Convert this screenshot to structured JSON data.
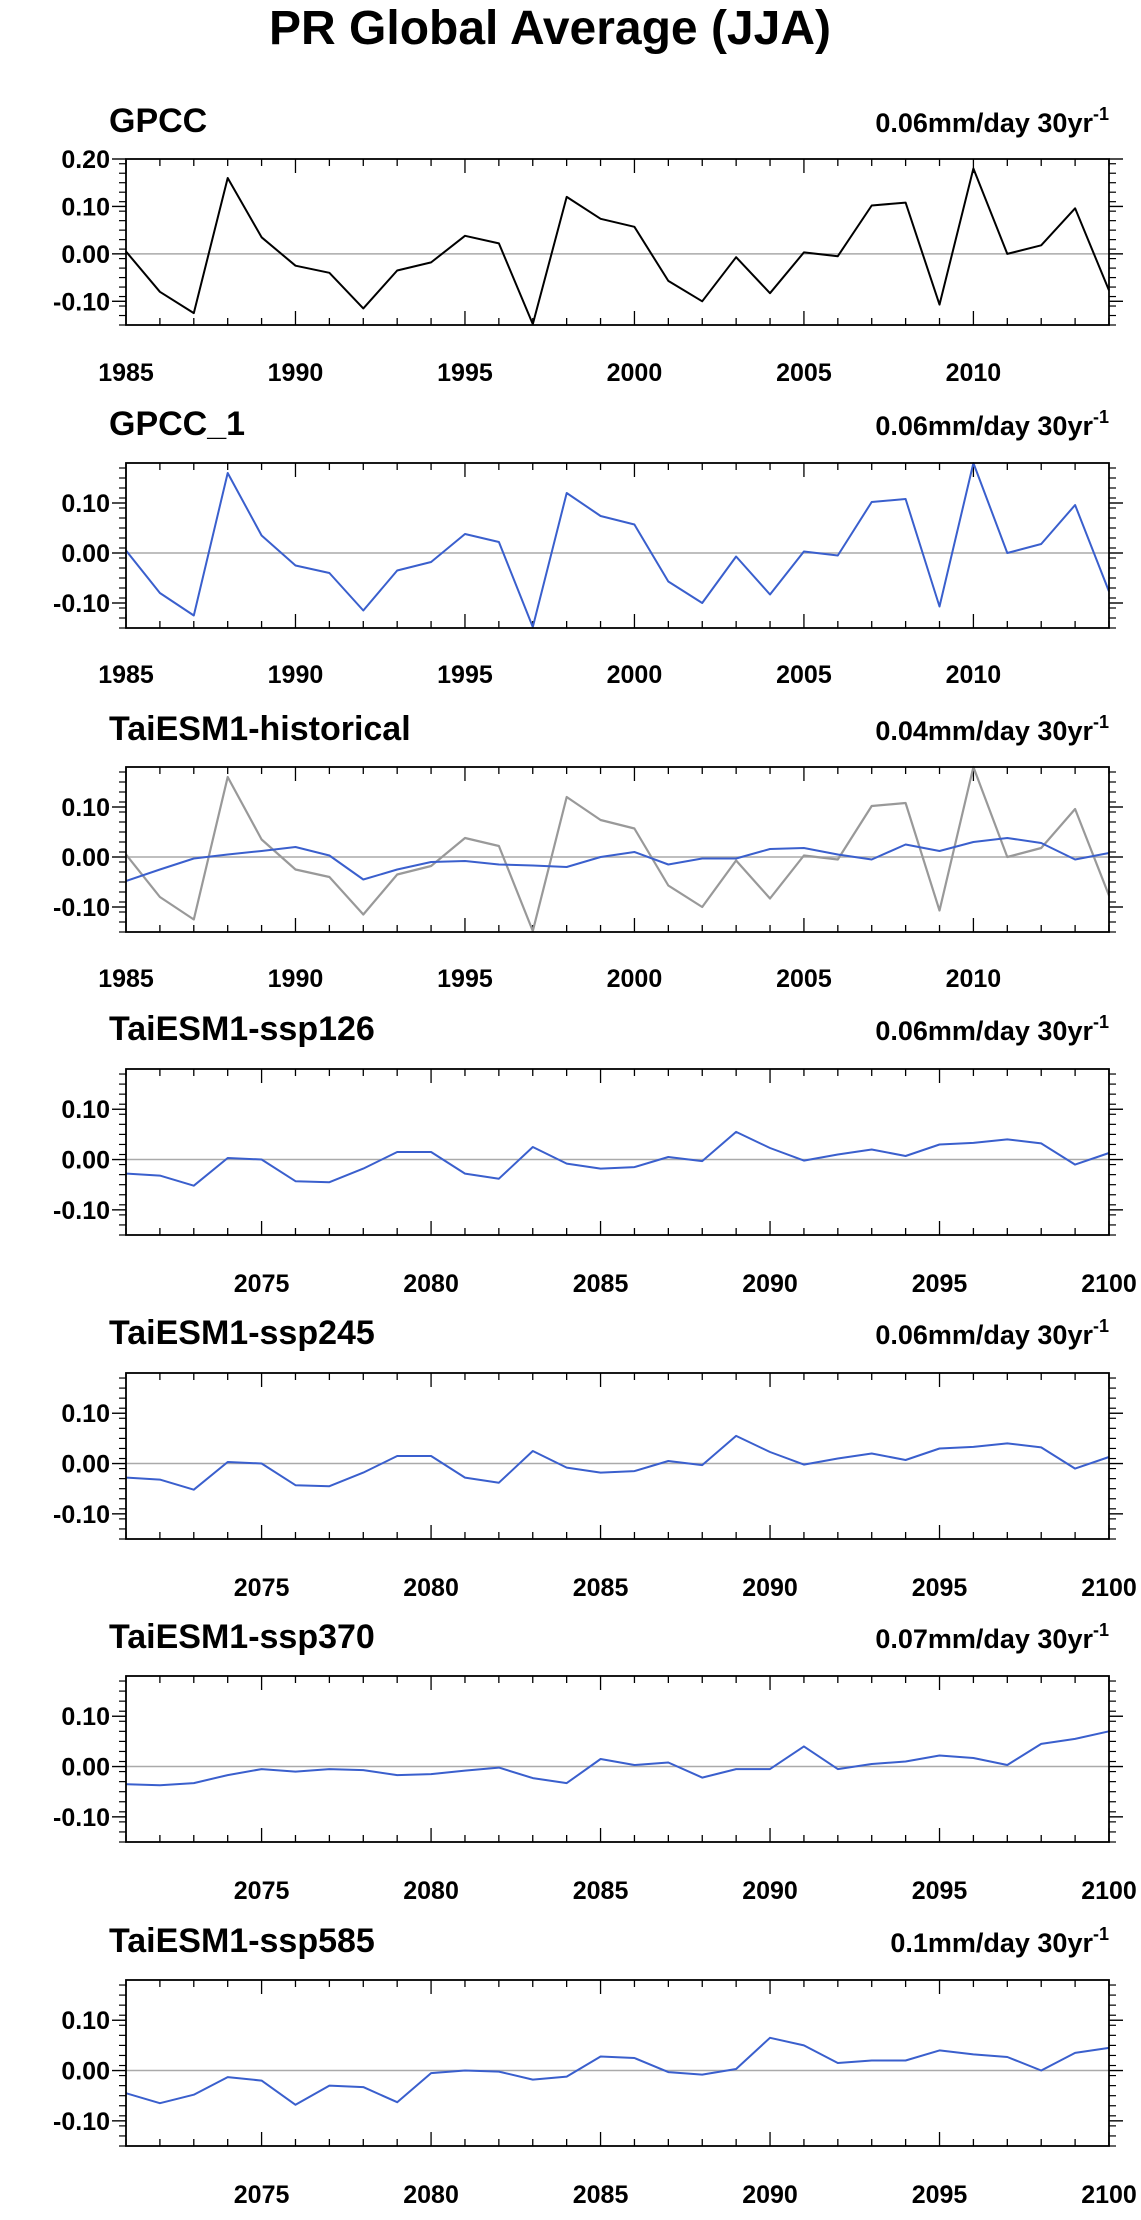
{
  "title": "PR Global Average (JJA)",
  "colors": {
    "observed": "#000000",
    "model": "#3a5fcd",
    "reference": "#999999",
    "zero_line": "#aaaaaa",
    "frame": "#000000"
  },
  "chart_data": [
    {
      "type": "line",
      "panel_title": "GPCC",
      "trend_text": "0.06mm/day 30yr",
      "trend_superscript": "-1",
      "xlim": [
        1985,
        2014
      ],
      "ylim": [
        -0.15,
        0.2
      ],
      "xticks": [
        1985,
        1990,
        1995,
        2000,
        2005,
        2010
      ],
      "ytick_labels": [
        "0.20",
        "0.10",
        "0.00",
        "-0.10"
      ],
      "ytick_values": [
        0.2,
        0.1,
        0.0,
        -0.1
      ],
      "series": [
        {
          "role": "observed",
          "x": [
            1985,
            1986,
            1987,
            1988,
            1989,
            1990,
            1991,
            1992,
            1993,
            1994,
            1995,
            1996,
            1997,
            1998,
            1999,
            2000,
            2001,
            2002,
            2003,
            2004,
            2005,
            2006,
            2007,
            2008,
            2009,
            2010,
            2011,
            2012,
            2013,
            2014
          ],
          "y": [
            0.005,
            -0.08,
            -0.125,
            0.16,
            0.035,
            -0.025,
            -0.04,
            -0.115,
            -0.035,
            -0.018,
            0.038,
            0.022,
            -0.148,
            0.12,
            0.074,
            0.057,
            -0.057,
            -0.1,
            -0.007,
            -0.083,
            0.003,
            -0.005,
            0.102,
            0.108,
            -0.107,
            0.18,
            0.0,
            0.018,
            0.096,
            -0.077
          ]
        }
      ]
    },
    {
      "type": "line",
      "panel_title": "GPCC_1",
      "trend_text": "0.06mm/day 30yr",
      "trend_superscript": "-1",
      "xlim": [
        1985,
        2014
      ],
      "ylim": [
        -0.15,
        0.18
      ],
      "xticks": [
        1985,
        1990,
        1995,
        2000,
        2005,
        2010
      ],
      "ytick_labels": [
        "0.10",
        "0.00",
        "-0.10"
      ],
      "ytick_values": [
        0.1,
        0.0,
        -0.1
      ],
      "series": [
        {
          "role": "model",
          "x": [
            1985,
            1986,
            1987,
            1988,
            1989,
            1990,
            1991,
            1992,
            1993,
            1994,
            1995,
            1996,
            1997,
            1998,
            1999,
            2000,
            2001,
            2002,
            2003,
            2004,
            2005,
            2006,
            2007,
            2008,
            2009,
            2010,
            2011,
            2012,
            2013,
            2014
          ],
          "y": [
            0.005,
            -0.08,
            -0.125,
            0.16,
            0.035,
            -0.025,
            -0.04,
            -0.115,
            -0.035,
            -0.018,
            0.038,
            0.022,
            -0.148,
            0.12,
            0.074,
            0.057,
            -0.057,
            -0.1,
            -0.007,
            -0.083,
            0.003,
            -0.005,
            0.102,
            0.108,
            -0.107,
            0.18,
            0.0,
            0.018,
            0.096,
            -0.077
          ]
        }
      ]
    },
    {
      "type": "line",
      "panel_title": "TaiESM1-historical",
      "trend_text": "0.04mm/day 30yr",
      "trend_superscript": "-1",
      "xlim": [
        1985,
        2014
      ],
      "ylim": [
        -0.15,
        0.18
      ],
      "xticks": [
        1985,
        1990,
        1995,
        2000,
        2005,
        2010
      ],
      "ytick_labels": [
        "0.10",
        "0.00",
        "-0.10"
      ],
      "ytick_values": [
        0.1,
        0.0,
        -0.1
      ],
      "series": [
        {
          "role": "reference",
          "x": [
            1985,
            1986,
            1987,
            1988,
            1989,
            1990,
            1991,
            1992,
            1993,
            1994,
            1995,
            1996,
            1997,
            1998,
            1999,
            2000,
            2001,
            2002,
            2003,
            2004,
            2005,
            2006,
            2007,
            2008,
            2009,
            2010,
            2011,
            2012,
            2013,
            2014
          ],
          "y": [
            0.005,
            -0.08,
            -0.125,
            0.16,
            0.035,
            -0.025,
            -0.04,
            -0.115,
            -0.035,
            -0.018,
            0.038,
            0.022,
            -0.148,
            0.12,
            0.074,
            0.057,
            -0.057,
            -0.1,
            -0.007,
            -0.083,
            0.003,
            -0.005,
            0.102,
            0.108,
            -0.107,
            0.18,
            0.0,
            0.018,
            0.096,
            -0.077
          ]
        },
        {
          "role": "model",
          "x": [
            1985,
            1986,
            1987,
            1988,
            1989,
            1990,
            1991,
            1992,
            1993,
            1994,
            1995,
            1996,
            1997,
            1998,
            1999,
            2000,
            2001,
            2002,
            2003,
            2004,
            2005,
            2006,
            2007,
            2008,
            2009,
            2010,
            2011,
            2012,
            2013,
            2014
          ],
          "y": [
            -0.048,
            -0.025,
            -0.003,
            0.005,
            0.012,
            0.02,
            0.003,
            -0.045,
            -0.025,
            -0.01,
            -0.008,
            -0.015,
            -0.017,
            -0.02,
            0.0,
            0.01,
            -0.015,
            -0.003,
            -0.003,
            0.016,
            0.018,
            0.005,
            -0.005,
            0.025,
            0.012,
            0.03,
            0.038,
            0.028,
            -0.005,
            0.008
          ]
        }
      ]
    },
    {
      "type": "line",
      "panel_title": "TaiESM1-ssp126",
      "trend_text": "0.06mm/day 30yr",
      "trend_superscript": "-1",
      "xlim": [
        2071,
        2100
      ],
      "ylim": [
        -0.15,
        0.18
      ],
      "xticks": [
        2075,
        2080,
        2085,
        2090,
        2095,
        2100
      ],
      "ytick_labels": [
        "0.10",
        "0.00",
        "-0.10"
      ],
      "ytick_values": [
        0.1,
        0.0,
        -0.1
      ],
      "series": [
        {
          "role": "model",
          "x": [
            2071,
            2072,
            2073,
            2074,
            2075,
            2076,
            2077,
            2078,
            2079,
            2080,
            2081,
            2082,
            2083,
            2084,
            2085,
            2086,
            2087,
            2088,
            2089,
            2090,
            2091,
            2092,
            2093,
            2094,
            2095,
            2096,
            2097,
            2098,
            2099,
            2100
          ],
          "y": [
            -0.028,
            -0.032,
            -0.052,
            0.003,
            0.0,
            -0.043,
            -0.045,
            -0.018,
            0.015,
            0.015,
            -0.028,
            -0.038,
            0.025,
            -0.008,
            -0.018,
            -0.015,
            0.005,
            -0.003,
            0.055,
            0.023,
            -0.002,
            0.01,
            0.02,
            0.007,
            0.03,
            0.033,
            0.04,
            0.032,
            -0.01,
            0.013
          ]
        }
      ]
    },
    {
      "type": "line",
      "panel_title": "TaiESM1-ssp245",
      "trend_text": "0.06mm/day 30yr",
      "trend_superscript": "-1",
      "xlim": [
        2071,
        2100
      ],
      "ylim": [
        -0.15,
        0.18
      ],
      "xticks": [
        2075,
        2080,
        2085,
        2090,
        2095,
        2100
      ],
      "ytick_labels": [
        "0.10",
        "0.00",
        "-0.10"
      ],
      "ytick_values": [
        0.1,
        0.0,
        -0.1
      ],
      "series": [
        {
          "role": "model",
          "x": [
            2071,
            2072,
            2073,
            2074,
            2075,
            2076,
            2077,
            2078,
            2079,
            2080,
            2081,
            2082,
            2083,
            2084,
            2085,
            2086,
            2087,
            2088,
            2089,
            2090,
            2091,
            2092,
            2093,
            2094,
            2095,
            2096,
            2097,
            2098,
            2099,
            2100
          ],
          "y": [
            -0.028,
            -0.032,
            -0.052,
            0.003,
            0.0,
            -0.043,
            -0.045,
            -0.018,
            0.015,
            0.015,
            -0.028,
            -0.038,
            0.025,
            -0.008,
            -0.018,
            -0.015,
            0.005,
            -0.003,
            0.055,
            0.023,
            -0.002,
            0.01,
            0.02,
            0.007,
            0.03,
            0.033,
            0.04,
            0.032,
            -0.01,
            0.013
          ]
        }
      ]
    },
    {
      "type": "line",
      "panel_title": "TaiESM1-ssp370",
      "trend_text": "0.07mm/day 30yr",
      "trend_superscript": "-1",
      "xlim": [
        2071,
        2100
      ],
      "ylim": [
        -0.15,
        0.18
      ],
      "xticks": [
        2075,
        2080,
        2085,
        2090,
        2095,
        2100
      ],
      "ytick_labels": [
        "0.10",
        "0.00",
        "-0.10"
      ],
      "ytick_values": [
        0.1,
        0.0,
        -0.1
      ],
      "series": [
        {
          "role": "model",
          "x": [
            2071,
            2072,
            2073,
            2074,
            2075,
            2076,
            2077,
            2078,
            2079,
            2080,
            2081,
            2082,
            2083,
            2084,
            2085,
            2086,
            2087,
            2088,
            2089,
            2090,
            2091,
            2092,
            2093,
            2094,
            2095,
            2096,
            2097,
            2098,
            2099,
            2100
          ],
          "y": [
            -0.035,
            -0.037,
            -0.033,
            -0.017,
            -0.005,
            -0.01,
            -0.005,
            -0.007,
            -0.017,
            -0.015,
            -0.008,
            -0.002,
            -0.023,
            -0.033,
            0.015,
            0.003,
            0.008,
            -0.022,
            -0.005,
            -0.005,
            0.04,
            -0.005,
            0.005,
            0.01,
            0.022,
            0.017,
            0.003,
            0.045,
            0.055,
            0.07
          ]
        }
      ]
    },
    {
      "type": "line",
      "panel_title": "TaiESM1-ssp585",
      "trend_text": "0.1mm/day 30yr",
      "trend_superscript": "-1",
      "xlim": [
        2071,
        2100
      ],
      "ylim": [
        -0.15,
        0.18
      ],
      "xticks": [
        2075,
        2080,
        2085,
        2090,
        2095,
        2100
      ],
      "ytick_labels": [
        "0.10",
        "0.00",
        "-0.10"
      ],
      "ytick_values": [
        0.1,
        0.0,
        -0.1
      ],
      "series": [
        {
          "role": "model",
          "x": [
            2071,
            2072,
            2073,
            2074,
            2075,
            2076,
            2077,
            2078,
            2079,
            2080,
            2081,
            2082,
            2083,
            2084,
            2085,
            2086,
            2087,
            2088,
            2089,
            2090,
            2091,
            2092,
            2093,
            2094,
            2095,
            2096,
            2097,
            2098,
            2099,
            2100
          ],
          "y": [
            -0.045,
            -0.065,
            -0.048,
            -0.013,
            -0.02,
            -0.068,
            -0.03,
            -0.033,
            -0.063,
            -0.005,
            0.0,
            -0.002,
            -0.018,
            -0.012,
            0.028,
            0.025,
            -0.003,
            -0.008,
            0.003,
            0.065,
            0.05,
            0.015,
            0.02,
            0.02,
            0.04,
            0.032,
            0.027,
            0.0,
            0.035,
            0.045
          ]
        }
      ]
    }
  ]
}
